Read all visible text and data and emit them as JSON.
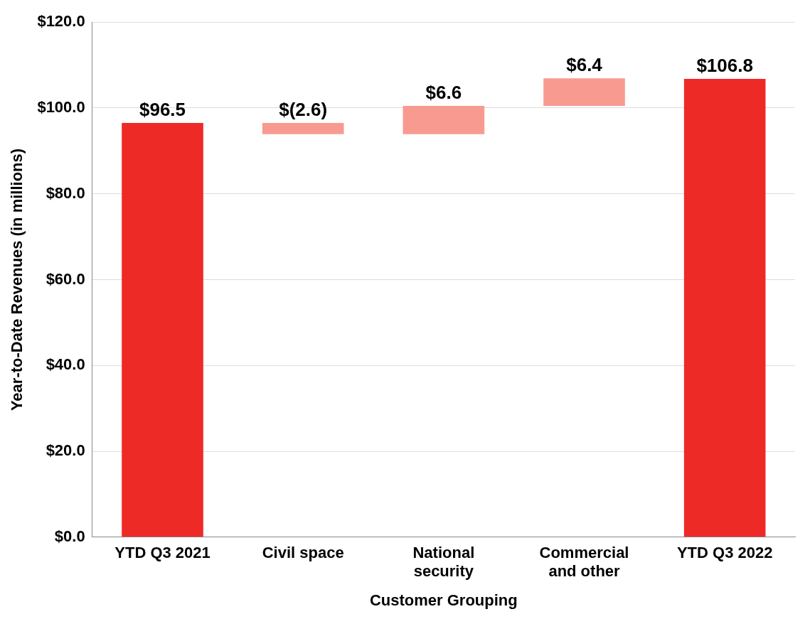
{
  "chart_data": {
    "type": "bar",
    "xlabel": "Customer Grouping",
    "ylabel": "Year-to-Date Revenues (in millions)",
    "categories": [
      "YTD Q3 2021",
      "Civil space",
      "National security",
      "Commercial and other",
      "YTD Q3 2022"
    ],
    "values": [
      96.5,
      -2.6,
      6.6,
      6.4,
      106.8
    ],
    "base": [
      0,
      96.5,
      93.9,
      100.5,
      0
    ],
    "colors": [
      "#ee2a27",
      "#f99a91",
      "#f99a91",
      "#f99a91",
      "#ee2a27"
    ],
    "value_labels": [
      "$96.5",
      "$(2.6)",
      "$6.6",
      "$6.4",
      "$106.8"
    ],
    "ylim": [
      0,
      120
    ],
    "yticks": [
      {
        "value": 0,
        "label": "$0.0"
      },
      {
        "value": 20,
        "label": "$20.0"
      },
      {
        "value": 40,
        "label": "$40.0"
      },
      {
        "value": 60,
        "label": "$60.0"
      },
      {
        "value": 80,
        "label": "$80.0"
      },
      {
        "value": 100,
        "label": "$100.0"
      },
      {
        "value": 120,
        "label": "$120.0"
      }
    ],
    "grid": "y",
    "legend": false
  }
}
